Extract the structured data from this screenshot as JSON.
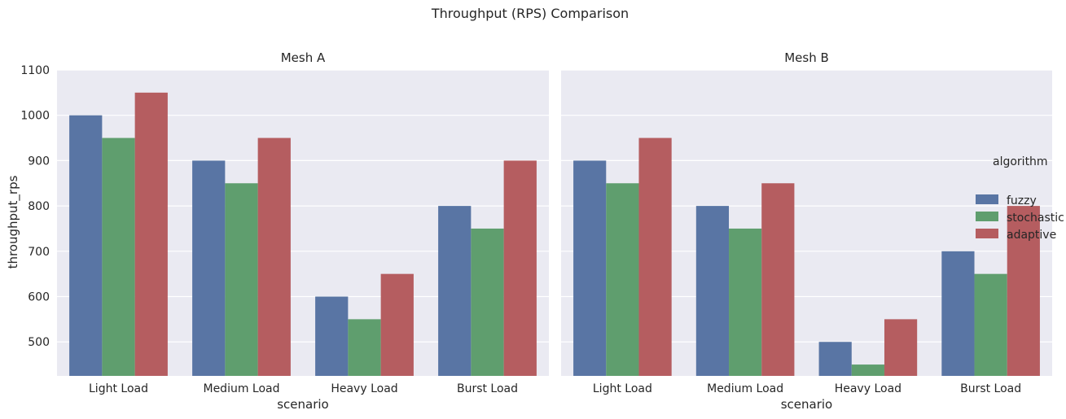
{
  "chart_data": {
    "type": "bar",
    "title": "Throughput (RPS) Comparison",
    "ylabel": "throughput_rps",
    "xlabel": "scenario",
    "ylim": [
      425,
      1100
    ],
    "yticks": [
      500,
      600,
      700,
      800,
      900,
      1000,
      1100
    ],
    "grid": true,
    "categories": [
      "Light Load",
      "Medium Load",
      "Heavy Load",
      "Burst Load"
    ],
    "legend": {
      "title": "algorithm",
      "placement": "right",
      "entries": [
        {
          "name": "fuzzy",
          "color": "#5975a4"
        },
        {
          "name": "stochastic",
          "color": "#5f9e6e"
        },
        {
          "name": "adaptive",
          "color": "#b55d60"
        }
      ]
    },
    "panels": [
      {
        "title": "Mesh A",
        "series": [
          {
            "name": "fuzzy",
            "values": [
              1000,
              900,
              600,
              800
            ]
          },
          {
            "name": "stochastic",
            "values": [
              950,
              850,
              550,
              750
            ]
          },
          {
            "name": "adaptive",
            "values": [
              1050,
              950,
              650,
              900
            ]
          }
        ]
      },
      {
        "title": "Mesh B",
        "series": [
          {
            "name": "fuzzy",
            "values": [
              900,
              800,
              500,
              700
            ]
          },
          {
            "name": "stochastic",
            "values": [
              850,
              750,
              450,
              650
            ]
          },
          {
            "name": "adaptive",
            "values": [
              950,
              850,
              550,
              800
            ]
          }
        ]
      }
    ]
  }
}
